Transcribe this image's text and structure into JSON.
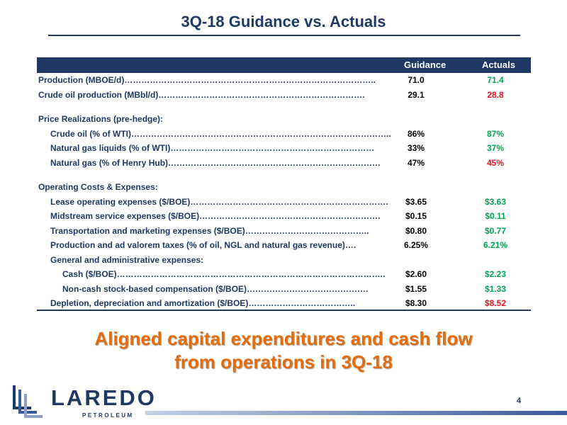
{
  "title": "3Q-18 Guidance vs. Actuals",
  "table": {
    "col_guidance": "Guidance",
    "col_actuals": "Actuals",
    "rows": [
      {
        "label": "Production (MBOE/d)……………………………………………………………………………..",
        "guidance": "71.0",
        "actual": "71.4",
        "status": "green",
        "indent": 0
      },
      {
        "label": "Crude oil production (MBbl/d)……………………………………………………………….",
        "guidance": "29.1",
        "actual": "28.8",
        "status": "red",
        "indent": 0
      },
      {
        "spacer": true
      },
      {
        "label": "Price Realizations (pre-hedge):",
        "guidance": "",
        "actual": "",
        "status": "",
        "indent": 0
      },
      {
        "label": "Crude oil (% of WTI)………………………………………………………………………………..",
        "guidance": "86%",
        "actual": "87%",
        "status": "green",
        "indent": 1
      },
      {
        "label": "Natural gas liquids (% of WTI)………………………………………………………………",
        "guidance": "33%",
        "actual": "37%",
        "status": "green",
        "indent": 1
      },
      {
        "label": "Natural gas (% of Henry Hub)…………………………………………………………………",
        "guidance": "47%",
        "actual": "45%",
        "status": "red",
        "indent": 1
      },
      {
        "spacer": true
      },
      {
        "label": "Operating Costs & Expenses:",
        "guidance": "",
        "actual": "",
        "status": "",
        "indent": 0
      },
      {
        "label": "Lease operating expenses ($/BOE)…………………………………………………………….",
        "guidance": "$3.65",
        "actual": "$3.63",
        "status": "green",
        "indent": 1
      },
      {
        "label": "Midstream service expenses ($/BOE)……………………………………………………….",
        "guidance": "$0.15",
        "actual": "$0.11",
        "status": "green",
        "indent": 1
      },
      {
        "label": "Transportation and marketing expenses ($/BOE)……………………………………..",
        "guidance": "$0.80",
        "actual": "$0.77",
        "status": "green",
        "indent": 1
      },
      {
        "label": "Production and ad valorem taxes (% of oil, NGL and natural gas revenue)….",
        "guidance": "6.25%",
        "actual": "6.21%",
        "status": "green",
        "indent": 1
      },
      {
        "label": "General and administrative expenses:",
        "guidance": "",
        "actual": "",
        "status": "",
        "indent": 1
      },
      {
        "label": "Cash ($/BOE)…………………………………………………………………………………..",
        "guidance": "$2.60",
        "actual": "$2.23",
        "status": "green",
        "indent": 2
      },
      {
        "label": "Non-cash stock-based compensation ($/BOE)…………………………………….",
        "guidance": "$1.55",
        "actual": "$1.33",
        "status": "green",
        "indent": 2
      },
      {
        "label": "Depletion, depreciation and amortization ($/BOE)………………………………..",
        "guidance": "$8.30",
        "actual": "$8.52",
        "status": "red",
        "indent": 1
      }
    ]
  },
  "tagline": {
    "line1": "Aligned capital expenditures and cash flow",
    "line2": "from operations in 3Q-18"
  },
  "logo": {
    "word": "LAREDO",
    "sub": "PETROLEUM"
  },
  "page_number": "4",
  "colors": {
    "navy": "#1f3864",
    "green": "#00a550",
    "red": "#e0141e",
    "orange": "#e46c0a"
  }
}
